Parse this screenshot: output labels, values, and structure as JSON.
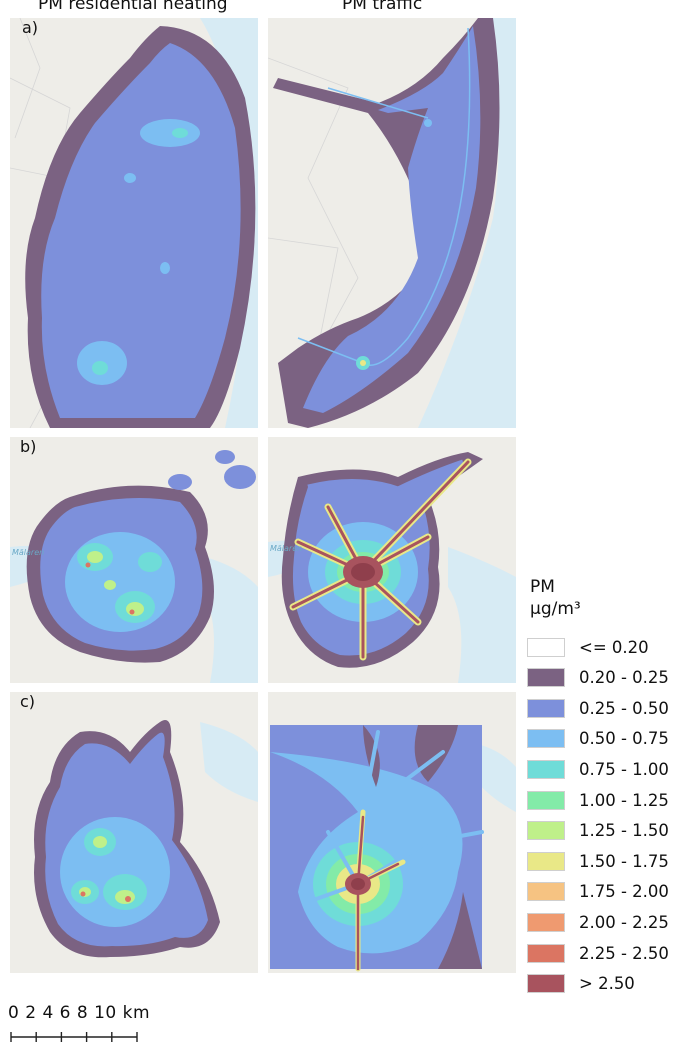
{
  "columns": [
    "PM residential heating",
    "PM traffic"
  ],
  "rows": [
    "a)",
    "b)",
    "c)"
  ],
  "legend": {
    "title_line1": "PM",
    "title_line2": "µg/m³",
    "items": [
      {
        "label": "<= 0.20",
        "color": "#ffffff"
      },
      {
        "label": "0.20 - 0.25",
        "color": "#7b6282"
      },
      {
        "label": "0.25 - 0.50",
        "color": "#7d90db"
      },
      {
        "label": "0.50 - 0.75",
        "color": "#7cbef2"
      },
      {
        "label": "0.75 - 1.00",
        "color": "#6fdcd8"
      },
      {
        "label": "1.00 - 1.25",
        "color": "#83eba8"
      },
      {
        "label": "1.25 - 1.50",
        "color": "#bff08a"
      },
      {
        "label": "1.50 - 1.75",
        "color": "#e9e887"
      },
      {
        "label": "1.75 - 2.00",
        "color": "#f6c382"
      },
      {
        "label": "2.00 - 2.25",
        "color": "#ef9a70"
      },
      {
        "label": "2.25 - 2.50",
        "color": "#db7562"
      },
      {
        "label": "> 2.50",
        "color": "#a8535e"
      }
    ]
  },
  "scale": {
    "label": "0 2 4 6 8 10 km",
    "ticks_km": [
      0,
      2,
      4,
      6,
      8,
      10
    ]
  },
  "map_labels": {
    "lake": "Mälaren"
  }
}
